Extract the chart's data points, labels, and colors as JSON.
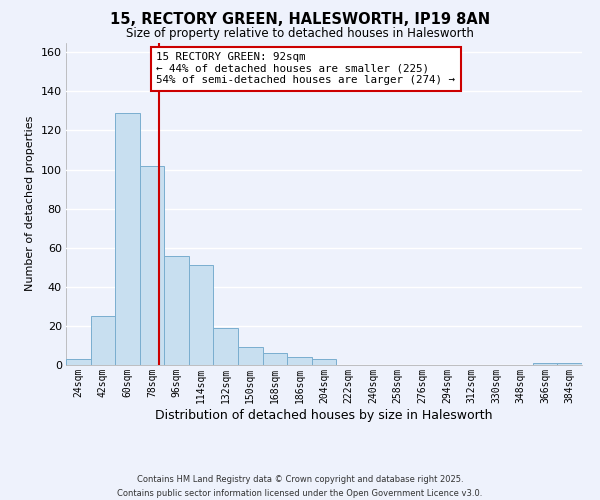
{
  "title": "15, RECTORY GREEN, HALESWORTH, IP19 8AN",
  "subtitle": "Size of property relative to detached houses in Halesworth",
  "xlabel": "Distribution of detached houses by size in Halesworth",
  "ylabel": "Number of detached properties",
  "bin_labels": [
    "24sqm",
    "42sqm",
    "60sqm",
    "78sqm",
    "96sqm",
    "114sqm",
    "132sqm",
    "150sqm",
    "168sqm",
    "186sqm",
    "204sqm",
    "222sqm",
    "240sqm",
    "258sqm",
    "276sqm",
    "294sqm",
    "312sqm",
    "330sqm",
    "348sqm",
    "366sqm",
    "384sqm"
  ],
  "bin_edges": [
    24,
    42,
    60,
    78,
    96,
    114,
    132,
    150,
    168,
    186,
    204,
    222,
    240,
    258,
    276,
    294,
    312,
    330,
    348,
    366,
    384
  ],
  "bar_values": [
    3,
    25,
    129,
    102,
    56,
    51,
    19,
    9,
    6,
    4,
    3,
    0,
    0,
    0,
    0,
    0,
    0,
    0,
    0,
    1,
    1
  ],
  "bar_color": "#c8dff0",
  "bar_edge_color": "#7aaecf",
  "vline_x": 92,
  "vline_color": "#cc0000",
  "ylim": [
    0,
    165
  ],
  "yticks": [
    0,
    20,
    40,
    60,
    80,
    100,
    120,
    140,
    160
  ],
  "annotation_text": "15 RECTORY GREEN: 92sqm\n← 44% of detached houses are smaller (225)\n54% of semi-detached houses are larger (274) →",
  "annotation_box_color": "#ffffff",
  "annotation_box_edge_color": "#cc0000",
  "footer_line1": "Contains HM Land Registry data © Crown copyright and database right 2025.",
  "footer_line2": "Contains public sector information licensed under the Open Government Licence v3.0.",
  "background_color": "#eef2fc",
  "grid_color": "#ffffff"
}
